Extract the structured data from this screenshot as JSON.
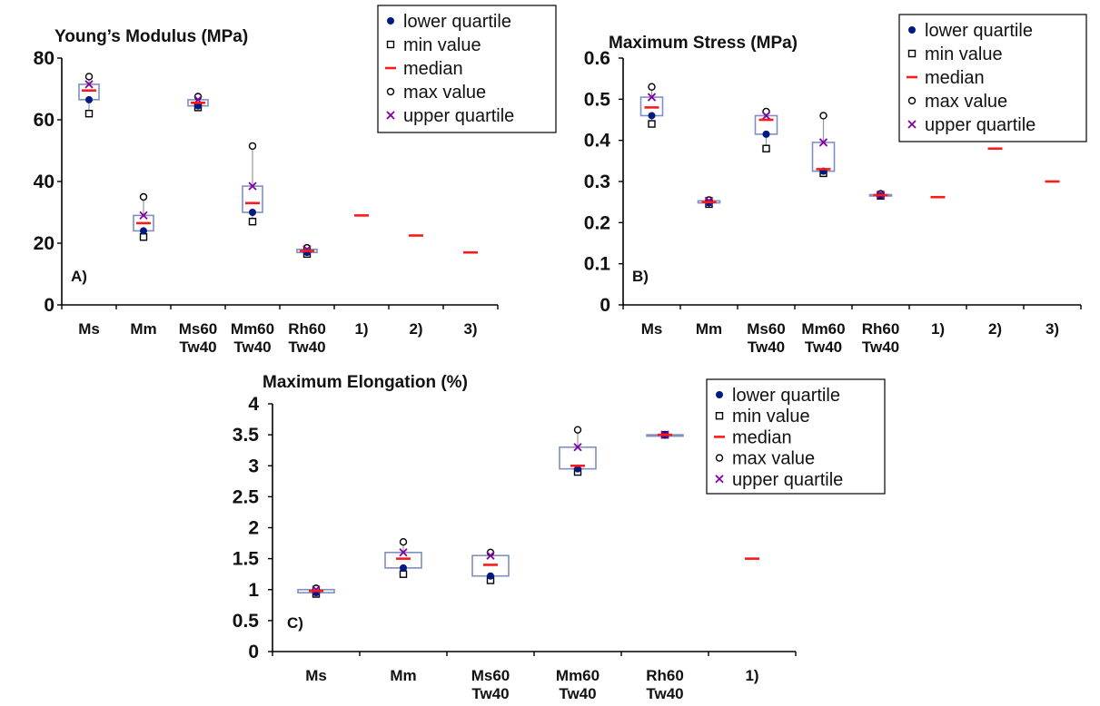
{
  "chart_data": [
    {
      "type": "box",
      "panel": "A)",
      "title": "Young’s Modulus (MPa)",
      "ylim": [
        0,
        80
      ],
      "yticks": [
        0,
        20,
        40,
        60,
        80
      ],
      "categories": [
        [
          "Ms"
        ],
        [
          "Mm"
        ],
        [
          "Ms60",
          "Tw40"
        ],
        [
          "Mm60",
          "Tw40"
        ],
        [
          "Rh60",
          "Tw40"
        ],
        [
          "1)"
        ],
        [
          "2)"
        ],
        [
          "3)"
        ]
      ],
      "legend": {
        "position": "top-right",
        "entries": [
          "lower quartile",
          "min value",
          "median",
          "max value",
          "upper quartile"
        ]
      },
      "boxes": [
        {
          "min": 62,
          "lower_quartile": 66.5,
          "median": 69.5,
          "upper_quartile": 71.5,
          "max": 74
        },
        {
          "min": 22,
          "lower_quartile": 24,
          "median": 26.5,
          "upper_quartile": 29,
          "max": 35
        },
        {
          "min": 64,
          "lower_quartile": 64.5,
          "median": 65.5,
          "upper_quartile": 66.5,
          "max": 67.5
        },
        {
          "min": 27,
          "lower_quartile": 30,
          "median": 33,
          "upper_quartile": 38.5,
          "max": 51.5
        },
        {
          "min": 16.5,
          "lower_quartile": 17,
          "median": 17.5,
          "upper_quartile": 18,
          "max": 18.5
        },
        {
          "median": 29
        },
        {
          "median": 22.5
        },
        {
          "median": 17
        }
      ]
    },
    {
      "type": "box",
      "panel": "B)",
      "title": "Maximum Stress (MPa)",
      "ylim": [
        0,
        0.6
      ],
      "yticks": [
        "0",
        "0.1",
        "0.2",
        "0.3",
        "0.4",
        "0.5",
        "0.6"
      ],
      "categories": [
        [
          "Ms"
        ],
        [
          "Mm"
        ],
        [
          "Ms60",
          "Tw40"
        ],
        [
          "Mm60",
          "Tw40"
        ],
        [
          "Rh60",
          "Tw40"
        ],
        [
          "1)"
        ],
        [
          "2)"
        ],
        [
          "3)"
        ]
      ],
      "legend": {
        "position": "top-right",
        "entries": [
          "lower quartile",
          "min value",
          "median",
          "max value",
          "upper quartile"
        ]
      },
      "boxes": [
        {
          "min": 0.44,
          "lower_quartile": 0.46,
          "median": 0.48,
          "upper_quartile": 0.505,
          "max": 0.53
        },
        {
          "min": 0.245,
          "lower_quartile": 0.248,
          "median": 0.25,
          "upper_quartile": 0.253,
          "max": 0.255
        },
        {
          "min": 0.38,
          "lower_quartile": 0.415,
          "median": 0.45,
          "upper_quartile": 0.46,
          "max": 0.47
        },
        {
          "min": 0.32,
          "lower_quartile": 0.325,
          "median": 0.33,
          "upper_quartile": 0.395,
          "max": 0.46
        },
        {
          "min": 0.265,
          "lower_quartile": 0.266,
          "median": 0.267,
          "upper_quartile": 0.268,
          "max": 0.27
        },
        {
          "median": 0.262
        },
        {
          "median": 0.38
        },
        {
          "median": 0.3
        }
      ]
    },
    {
      "type": "box",
      "panel": "C)",
      "title": "Maximum Elongation (%)",
      "ylim": [
        0,
        4
      ],
      "yticks": [
        "0",
        "0.5",
        "1",
        "1.5",
        "2",
        "2.5",
        "3",
        "3.5",
        "4"
      ],
      "categories": [
        [
          "Ms"
        ],
        [
          "Mm"
        ],
        [
          "Ms60",
          "Tw40"
        ],
        [
          "Mm60",
          "Tw40"
        ],
        [
          "Rh60",
          "Tw40"
        ],
        [
          "1)"
        ]
      ],
      "legend": {
        "position": "top-right",
        "entries": [
          "lower quartile",
          "min value",
          "median",
          "max value",
          "upper quartile"
        ]
      },
      "boxes": [
        {
          "min": 0.93,
          "lower_quartile": 0.95,
          "median": 0.98,
          "upper_quartile": 1.0,
          "max": 1.02
        },
        {
          "min": 1.25,
          "lower_quartile": 1.35,
          "median": 1.5,
          "upper_quartile": 1.6,
          "max": 1.77
        },
        {
          "min": 1.15,
          "lower_quartile": 1.22,
          "median": 1.4,
          "upper_quartile": 1.55,
          "max": 1.6
        },
        {
          "min": 2.9,
          "lower_quartile": 2.95,
          "median": 3.0,
          "upper_quartile": 3.3,
          "max": 3.58
        },
        {
          "min": 3.5,
          "lower_quartile": 3.5,
          "median": 3.5,
          "upper_quartile": 3.5,
          "max": 3.5
        },
        {
          "median": 1.5
        }
      ]
    }
  ]
}
